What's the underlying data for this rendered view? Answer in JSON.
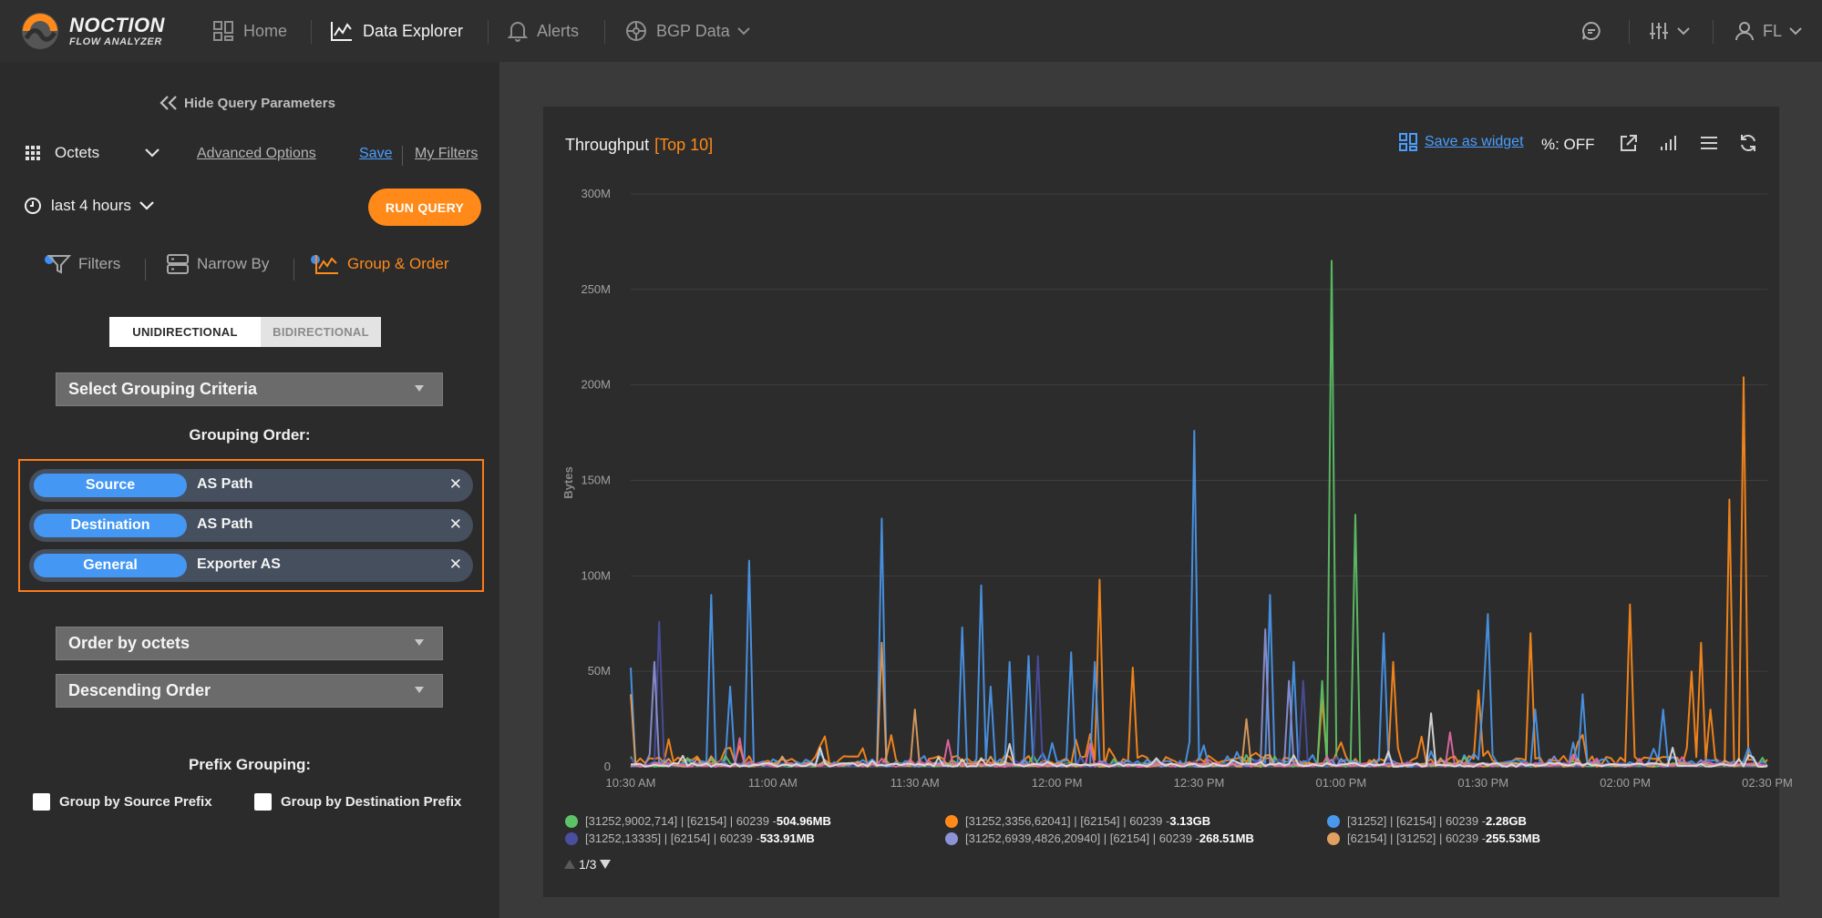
{
  "app": {
    "logo_line1": "NOCTION",
    "logo_line2": "FLOW ANALYZER"
  },
  "nav": {
    "home": "Home",
    "data_explorer": "Data Explorer",
    "alerts": "Alerts",
    "bgp_data": "BGP Data",
    "user_initials": "FL"
  },
  "left": {
    "hide_query": "Hide Query Parameters",
    "metric": "Octets",
    "advanced_options": "Advanced Options",
    "save": "Save",
    "my_filters": "My Filters",
    "time_range": "last 4 hours",
    "run_query": "RUN QUERY",
    "tabs": {
      "filters": "Filters",
      "narrow_by": "Narrow By",
      "group_order": "Group & Order"
    },
    "direction": {
      "uni": "UNIDIRECTIONAL",
      "bi": "BIDIRECTIONAL"
    },
    "grouping_criteria": "Select Grouping Criteria",
    "grouping_order_title": "Grouping Order:",
    "grouping": [
      {
        "scope": "Source",
        "field": "AS Path"
      },
      {
        "scope": "Destination",
        "field": "AS Path"
      },
      {
        "scope": "General",
        "field": "Exporter AS"
      }
    ],
    "order_by": "Order by octets",
    "order_dir": "Descending Order",
    "prefix_title": "Prefix Grouping:",
    "group_src_prefix": "Group by Source Prefix",
    "group_dst_prefix": "Group by Destination Prefix"
  },
  "card": {
    "title": "Throughput",
    "title_tag": "[Top 10]",
    "save_widget": "Save as widget",
    "percent": "%: OFF",
    "pager": "1/3"
  },
  "legend": [
    {
      "color": "#5cc466",
      "label": "[31252,9002,714] | [62154] | 60239 - ",
      "value": "504.96MB"
    },
    {
      "color": "#ff8a1a",
      "label": "[31252,3356,62041] | [62154] | 60239 - ",
      "value": "3.13GB"
    },
    {
      "color": "#4a98ee",
      "label": "[31252] | [62154] | 60239 - ",
      "value": "2.28GB"
    },
    {
      "color": "#4a4ea0",
      "label": "[31252,13335] | [62154] | 60239 - ",
      "value": "533.91MB"
    },
    {
      "color": "#8c92d6",
      "label": "[31252,6939,4826,20940] | [62154] | 60239 - ",
      "value": "268.51MB"
    },
    {
      "color": "#e0a060",
      "label": "[62154] | [31252] | 60239 - ",
      "value": "255.53MB"
    }
  ],
  "chart_data": {
    "type": "line",
    "title": "Throughput [Top 10]",
    "ylabel": "Bytes",
    "xlabel": "",
    "ylim": [
      0,
      300000000
    ],
    "y_ticks": [
      "0",
      "50M",
      "100M",
      "150M",
      "200M",
      "250M",
      "300M"
    ],
    "x_ticks": [
      "10:30 AM",
      "11:00 AM",
      "11:30 AM",
      "12:00 PM",
      "12:30 PM",
      "01:00 PM",
      "01:30 PM",
      "02:00 PM",
      "02:30 PM"
    ],
    "x_range_minutes": [
      0,
      240
    ],
    "series": [
      {
        "name": "[31252,3356,62041] | [62154] | 60239",
        "color": "#ff8a1a",
        "peaks": [
          [
            21,
            10
          ],
          [
            99,
            98
          ],
          [
            106,
            52
          ],
          [
            146,
            35
          ],
          [
            161,
            55
          ],
          [
            179,
            40
          ],
          [
            190,
            70
          ],
          [
            211,
            85
          ],
          [
            224,
            50
          ],
          [
            226,
            65
          ],
          [
            232,
            140
          ],
          [
            235,
            204
          ],
          [
            228,
            30
          ]
        ]
      },
      {
        "name": "[31252] | [62154] | 60239",
        "color": "#4a98ee",
        "peaks": [
          [
            0,
            52
          ],
          [
            17,
            90
          ],
          [
            21,
            42
          ],
          [
            25,
            108
          ],
          [
            53,
            130
          ],
          [
            70,
            73
          ],
          [
            74,
            95
          ],
          [
            76,
            42
          ],
          [
            80,
            55
          ],
          [
            84,
            58
          ],
          [
            93,
            60
          ],
          [
            98,
            55
          ],
          [
            119,
            176
          ],
          [
            135,
            90
          ],
          [
            140,
            55
          ],
          [
            159,
            70
          ],
          [
            181,
            80
          ],
          [
            180,
            35
          ],
          [
            191,
            30
          ],
          [
            201,
            38
          ],
          [
            218,
            30
          ],
          [
            236,
            10
          ]
        ]
      },
      {
        "name": "[31252,9002,714] | [62154] | 60239",
        "color": "#5cc466",
        "peaks": [
          [
            148,
            265
          ],
          [
            153,
            132
          ],
          [
            146,
            45
          ]
        ]
      },
      {
        "name": "[31252,13335] | [62154] | 60239",
        "color": "#4a4ea0",
        "peaks": [
          [
            6,
            76
          ],
          [
            86,
            58
          ],
          [
            142,
            45
          ]
        ]
      },
      {
        "name": "[31252,6939,4826,20940] | [62154] | 60239",
        "color": "#8c92d6",
        "peaks": [
          [
            5,
            55
          ],
          [
            134,
            72
          ],
          [
            139,
            45
          ]
        ]
      },
      {
        "name": "[62154] | [31252] | 60239",
        "color": "#e0a060",
        "peaks": [
          [
            0,
            38
          ],
          [
            53,
            65
          ],
          [
            60,
            30
          ],
          [
            130,
            25
          ]
        ]
      },
      {
        "name": "",
        "color": "#e36aa6",
        "peaks": [
          [
            23,
            15
          ],
          [
            67,
            14
          ],
          [
            97,
            12
          ],
          [
            173,
            18
          ]
        ]
      },
      {
        "name": "",
        "color": "#dddddd",
        "peaks": [
          [
            40,
            10
          ],
          [
            80,
            12
          ],
          [
            160,
            8
          ],
          [
            169,
            28
          ],
          [
            220,
            10
          ]
        ]
      }
    ]
  }
}
